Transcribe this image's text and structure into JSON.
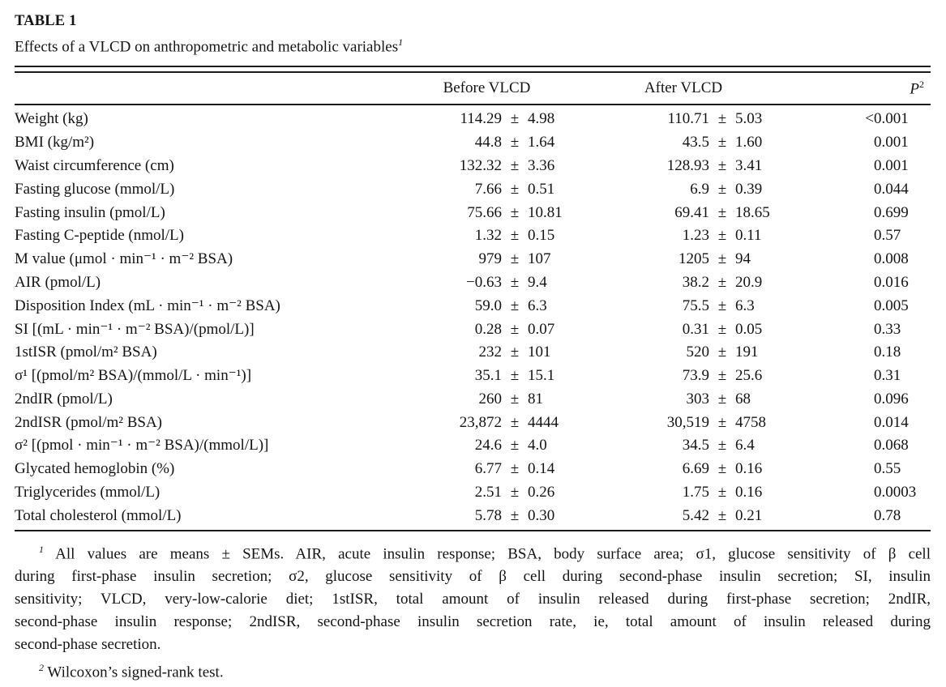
{
  "table": {
    "label": "TABLE 1",
    "caption": "Effects of a VLCD on anthropometric and metabolic variables",
    "caption_superscript": "1",
    "plus_minus": "±",
    "columns": {
      "variable": "",
      "before": "Before VLCD",
      "after": "After VLCD",
      "p_label": "P",
      "p_superscript": "2"
    },
    "rows": [
      {
        "variable": "Weight (kg)",
        "before": {
          "value": "114.29",
          "sem": "4.98"
        },
        "after": {
          "value": "110.71",
          "sem": "5.03"
        },
        "p": "<0.001"
      },
      {
        "variable": "BMI (kg/m²)",
        "before": {
          "value": "44.8",
          "sem": "1.64"
        },
        "after": {
          "value": "43.5",
          "sem": "1.60"
        },
        "p": "0.001"
      },
      {
        "variable": "Waist circumference (cm)",
        "before": {
          "value": "132.32",
          "sem": "3.36"
        },
        "after": {
          "value": "128.93",
          "sem": "3.41"
        },
        "p": "0.001"
      },
      {
        "variable": "Fasting glucose (mmol/L)",
        "before": {
          "value": "7.66",
          "sem": "0.51"
        },
        "after": {
          "value": "6.9",
          "sem": "0.39"
        },
        "p": "0.044"
      },
      {
        "variable": "Fasting insulin (pmol/L)",
        "before": {
          "value": "75.66",
          "sem": "10.81"
        },
        "after": {
          "value": "69.41",
          "sem": "18.65"
        },
        "p": "0.699"
      },
      {
        "variable": "Fasting C-peptide (nmol/L)",
        "before": {
          "value": "1.32",
          "sem": "0.15"
        },
        "after": {
          "value": "1.23",
          "sem": "0.11"
        },
        "p": "0.57"
      },
      {
        "variable": "M value (μmol · min⁻¹ · m⁻² BSA)",
        "before": {
          "value": "979",
          "sem": "107"
        },
        "after": {
          "value": "1205",
          "sem": "94"
        },
        "p": "0.008"
      },
      {
        "variable": "AIR (pmol/L)",
        "before": {
          "value": "−0.63",
          "sem": "9.4"
        },
        "after": {
          "value": "38.2",
          "sem": "20.9"
        },
        "p": "0.016"
      },
      {
        "variable": "Disposition Index (mL · min⁻¹ · m⁻² BSA)",
        "before": {
          "value": "59.0",
          "sem": "6.3"
        },
        "after": {
          "value": "75.5",
          "sem": "6.3"
        },
        "p": "0.005"
      },
      {
        "variable": "SI [(mL · min⁻¹ · m⁻² BSA)/(pmol/L)]",
        "before": {
          "value": "0.28",
          "sem": "0.07"
        },
        "after": {
          "value": "0.31",
          "sem": "0.05"
        },
        "p": "0.33"
      },
      {
        "variable": "1stISR (pmol/m² BSA)",
        "before": {
          "value": "232",
          "sem": "101"
        },
        "after": {
          "value": "520",
          "sem": "191"
        },
        "p": "0.18"
      },
      {
        "variable": "σ¹ [(pmol/m² BSA)/(mmol/L · min⁻¹)]",
        "before": {
          "value": "35.1",
          "sem": "15.1"
        },
        "after": {
          "value": "73.9",
          "sem": "25.6"
        },
        "p": "0.31"
      },
      {
        "variable": "2ndIR (pmol/L)",
        "before": {
          "value": "260",
          "sem": "81"
        },
        "after": {
          "value": "303",
          "sem": "68"
        },
        "p": "0.096"
      },
      {
        "variable": "2ndISR (pmol/m² BSA)",
        "before": {
          "value": "23,872",
          "sem": "4444"
        },
        "after": {
          "value": "30,519",
          "sem": "4758"
        },
        "p": "0.014"
      },
      {
        "variable": "σ² [(pmol · min⁻¹ · m⁻² BSA)/(mmol/L)]",
        "before": {
          "value": "24.6",
          "sem": "4.0"
        },
        "after": {
          "value": "34.5",
          "sem": "6.4"
        },
        "p": "0.068"
      },
      {
        "variable": "Glycated hemoglobin (%)",
        "before": {
          "value": "6.77",
          "sem": "0.14"
        },
        "after": {
          "value": "6.69",
          "sem": "0.16"
        },
        "p": "0.55"
      },
      {
        "variable": "Triglycerides (mmol/L)",
        "before": {
          "value": "2.51",
          "sem": "0.26"
        },
        "after": {
          "value": "1.75",
          "sem": "0.16"
        },
        "p": "0.0003"
      },
      {
        "variable": "Total cholesterol (mmol/L)",
        "before": {
          "value": "5.78",
          "sem": "0.30"
        },
        "after": {
          "value": "5.42",
          "sem": "0.21"
        },
        "p": "0.78"
      }
    ]
  },
  "footnotes": [
    {
      "marker": "1",
      "lines": [
        "All values are means ± SEMs. AIR, acute insulin response; BSA, body surface area; σ1, glucose sensitivity of β cell",
        "during first-phase insulin secretion; σ2, glucose sensitivity of β cell during second-phase insulin secretion; SI, insulin",
        "sensitivity; VLCD, very-low-calorie diet; 1stISR, total amount of insulin released during first-phase secretion; 2ndIR,",
        "second-phase insulin response; 2ndISR, second-phase insulin secretion rate, ie, total amount of insulin released during",
        "second-phase secretion."
      ]
    },
    {
      "marker": "2",
      "lines": [
        "Wilcoxon’s signed-rank test."
      ]
    }
  ]
}
